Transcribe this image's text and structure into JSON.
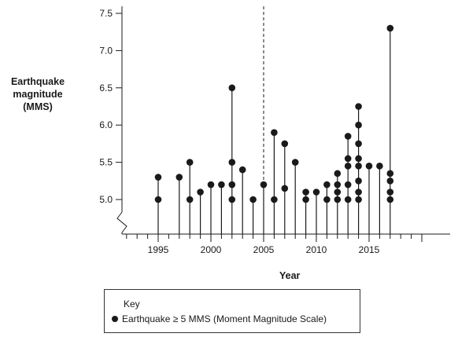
{
  "chart_data": {
    "type": "scatter",
    "title": "",
    "ylabel_lines": [
      "Earthquake",
      "magnitude",
      "(MMS)"
    ],
    "xlabel": "Year",
    "ylim": [
      4.5,
      7.5
    ],
    "xlim": [
      1991,
      2021
    ],
    "yticks": [
      "5.0",
      "5.5",
      "6.0",
      "6.5",
      "7.0",
      "7.5"
    ],
    "xticks": [
      "1995",
      "2000",
      "2005",
      "2010",
      "2015"
    ],
    "x_axis_break": true,
    "reference_line": {
      "x": 2005,
      "style": "dashed"
    },
    "grid": false,
    "legend": {
      "placement": "bottom-center",
      "title": "Key",
      "entry": "Earthquake ≥ 5 MMS (Moment Magnitude Scale)"
    },
    "series": [
      {
        "points": [
          {
            "x": 1995,
            "y": 5.3
          },
          {
            "x": 1995,
            "y": 5.0
          },
          {
            "x": 1997,
            "y": 5.3
          },
          {
            "x": 1998,
            "y": 5.5
          },
          {
            "x": 1998,
            "y": 5.0
          },
          {
            "x": 1999,
            "y": 5.1
          },
          {
            "x": 2000,
            "y": 5.2
          },
          {
            "x": 2001,
            "y": 5.2
          },
          {
            "x": 2002,
            "y": 6.5
          },
          {
            "x": 2002,
            "y": 5.5
          },
          {
            "x": 2002,
            "y": 5.2
          },
          {
            "x": 2002,
            "y": 5.0
          },
          {
            "x": 2003,
            "y": 5.4
          },
          {
            "x": 2004,
            "y": 5.0
          },
          {
            "x": 2005,
            "y": 5.2
          },
          {
            "x": 2006,
            "y": 5.9
          },
          {
            "x": 2006,
            "y": 5.0
          },
          {
            "x": 2007,
            "y": 5.75
          },
          {
            "x": 2007,
            "y": 5.15
          },
          {
            "x": 2008,
            "y": 5.5
          },
          {
            "x": 2009,
            "y": 5.1
          },
          {
            "x": 2009,
            "y": 5.0
          },
          {
            "x": 2010,
            "y": 5.1
          },
          {
            "x": 2011,
            "y": 5.2
          },
          {
            "x": 2011,
            "y": 5.0
          },
          {
            "x": 2012,
            "y": 5.35
          },
          {
            "x": 2012,
            "y": 5.2
          },
          {
            "x": 2012,
            "y": 5.1
          },
          {
            "x": 2012,
            "y": 5.0
          },
          {
            "x": 2013,
            "y": 5.85
          },
          {
            "x": 2013,
            "y": 5.55
          },
          {
            "x": 2013,
            "y": 5.45
          },
          {
            "x": 2013,
            "y": 5.2
          },
          {
            "x": 2013,
            "y": 5.0
          },
          {
            "x": 2014,
            "y": 6.25
          },
          {
            "x": 2014,
            "y": 6.0
          },
          {
            "x": 2014,
            "y": 5.75
          },
          {
            "x": 2014,
            "y": 5.55
          },
          {
            "x": 2014,
            "y": 5.45
          },
          {
            "x": 2014,
            "y": 5.25
          },
          {
            "x": 2014,
            "y": 5.1
          },
          {
            "x": 2014,
            "y": 5.0
          },
          {
            "x": 2015,
            "y": 5.45
          },
          {
            "x": 2016,
            "y": 5.45
          },
          {
            "x": 2017,
            "y": 7.3
          },
          {
            "x": 2017,
            "y": 5.35
          },
          {
            "x": 2017,
            "y": 5.25
          },
          {
            "x": 2017,
            "y": 5.1
          },
          {
            "x": 2017,
            "y": 5.0
          }
        ]
      }
    ],
    "colors": {
      "ink": "#1a1a1a"
    }
  }
}
